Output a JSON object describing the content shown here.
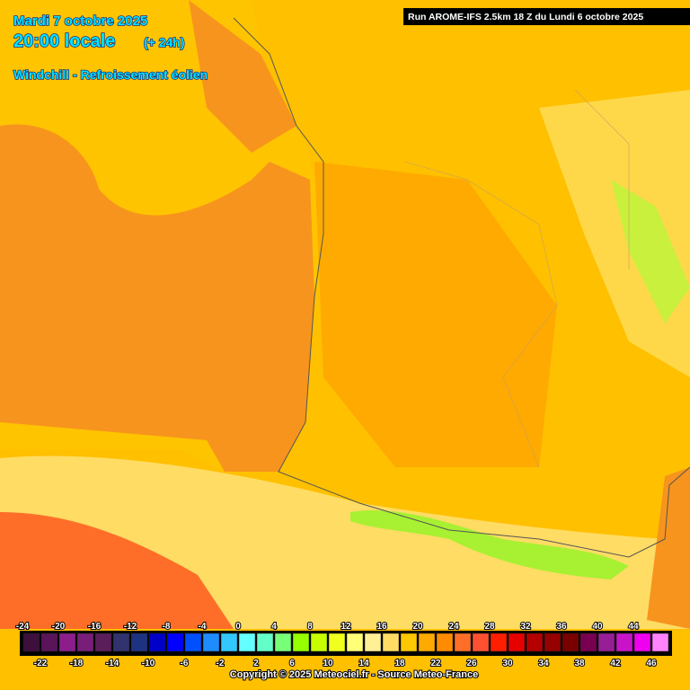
{
  "header": {
    "date": "Mardi 7 octobre 2025",
    "time": "20:00 locale",
    "lead": "(+ 24h)",
    "parameter": "Windchill - Refroissement éolien",
    "run": "Run AROME-IFS 2.5km 18 Z du Lundi 6 octobre 2025"
  },
  "legend": {
    "values": [
      -24,
      -22,
      -20,
      -18,
      -16,
      -14,
      -12,
      -10,
      -8,
      -6,
      -4,
      -2,
      0,
      2,
      4,
      6,
      8,
      10,
      12,
      14,
      16,
      18,
      20,
      22,
      24,
      26,
      28,
      30,
      32,
      34,
      36,
      38,
      40,
      42,
      44,
      46
    ],
    "colors": [
      "#3c0f3c",
      "#5a145a",
      "#8c1e8c",
      "#781e78",
      "#5a1e5a",
      "#32326e",
      "#1e3282",
      "#0000c8",
      "#0000ff",
      "#0050ff",
      "#1e8cff",
      "#32c8ff",
      "#64ffff",
      "#64ffc8",
      "#78ff78",
      "#96ff00",
      "#c8ff00",
      "#f0ff1e",
      "#ffff78",
      "#fff096",
      "#ffdc64",
      "#ffc800",
      "#ffaa00",
      "#ff8c00",
      "#ff6e28",
      "#ff5032",
      "#ff1e00",
      "#e60000",
      "#b40000",
      "#960000",
      "#780000",
      "#780050",
      "#961e96",
      "#c814c8",
      "#f000f0",
      "#ff82ff"
    ]
  },
  "footer": {
    "copyright": "Copyright © 2025 Meteociel.fr - Source Meteo-France"
  }
}
